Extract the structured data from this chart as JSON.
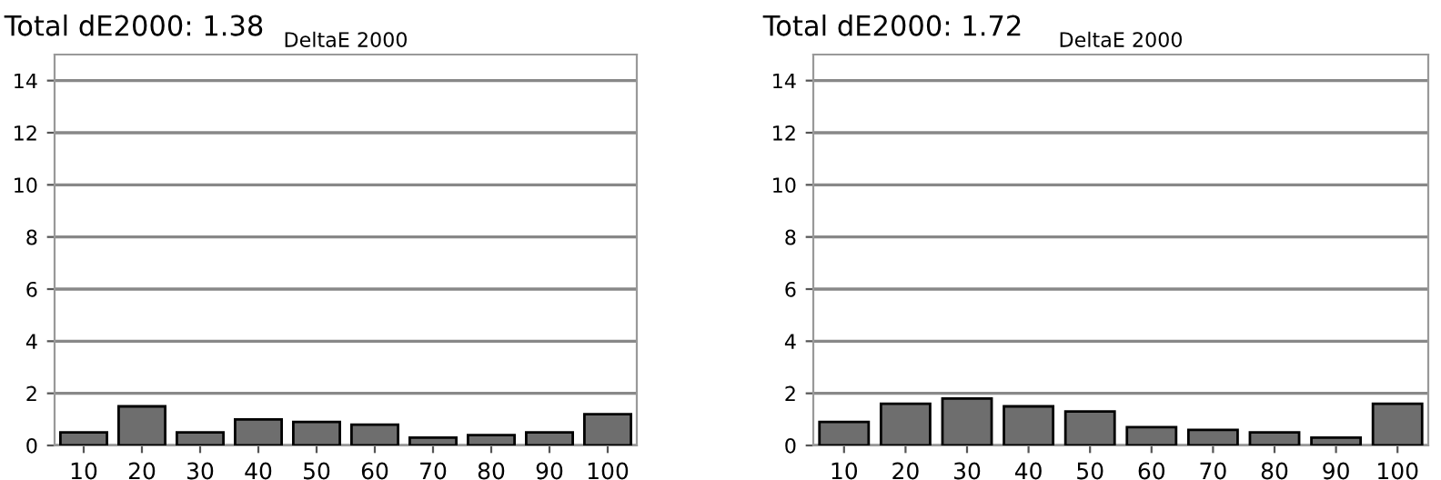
{
  "chart_data": [
    {
      "type": "bar",
      "title": "Total dE2000: 1.38",
      "subtitle": "DeltaE 2000",
      "categories": [
        "10",
        "20",
        "30",
        "40",
        "50",
        "60",
        "70",
        "80",
        "90",
        "100"
      ],
      "values": [
        0.5,
        1.5,
        0.5,
        1.0,
        0.9,
        0.8,
        0.3,
        0.4,
        0.5,
        1.2
      ],
      "color": "#6e6e6e",
      "ylim": [
        0,
        15
      ],
      "yticks": [
        0,
        2,
        4,
        6,
        8,
        10,
        12,
        14
      ],
      "grid": "y",
      "legend": false
    },
    {
      "type": "bar",
      "title": "Total dE2000: 1.72",
      "subtitle": "DeltaE 2000",
      "categories": [
        "10",
        "20",
        "30",
        "40",
        "50",
        "60",
        "70",
        "80",
        "90",
        "100"
      ],
      "values": [
        0.9,
        1.6,
        1.8,
        1.5,
        1.3,
        0.7,
        0.6,
        0.5,
        0.3,
        1.6
      ],
      "color": "#6e6e6e",
      "ylim": [
        0,
        15
      ],
      "yticks": [
        0,
        2,
        4,
        6,
        8,
        10,
        12,
        14
      ],
      "grid": "y",
      "legend": false
    }
  ]
}
